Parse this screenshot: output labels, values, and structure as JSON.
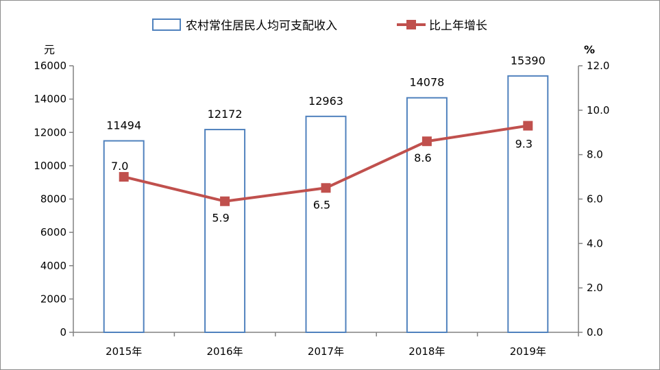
{
  "chart_data": {
    "type": "bar+line",
    "categories": [
      "2015年",
      "2016年",
      "2017年",
      "2018年",
      "2019年"
    ],
    "series": [
      {
        "name": "农村常住居民人均可支配收入",
        "type": "bar",
        "axis": "left",
        "values": [
          11494,
          12172,
          12963,
          14078,
          15390
        ],
        "color": "#4f81bd"
      },
      {
        "name": "比上年增长",
        "type": "line",
        "axis": "right",
        "values": [
          7.0,
          5.9,
          6.5,
          8.6,
          9.3
        ],
        "color": "#c0504d"
      }
    ],
    "left_axis": {
      "unit": "元",
      "min": 0,
      "max": 16000,
      "step": 2000,
      "ticks": [
        "0",
        "2000",
        "4000",
        "6000",
        "8000",
        "10000",
        "12000",
        "14000",
        "16000"
      ]
    },
    "right_axis": {
      "unit": "%",
      "min": 0,
      "max": 12,
      "step": 2,
      "ticks": [
        "0.0",
        "2.0",
        "4.0",
        "6.0",
        "8.0",
        "10.0",
        "12.0"
      ]
    },
    "bar_labels": [
      "11494",
      "12172",
      "12963",
      "14078",
      "15390"
    ],
    "line_labels": [
      "7.0",
      "5.9",
      "6.5",
      "8.6",
      "9.3"
    ],
    "legend_position": "top",
    "grid": false
  }
}
